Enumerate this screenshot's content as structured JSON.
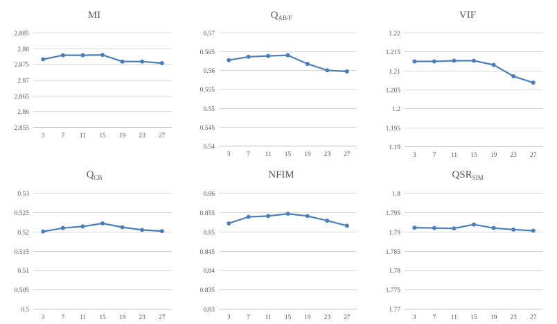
{
  "colors": {
    "series": "#4a7ebb",
    "grid": "#d9d9d9",
    "text": "#595959"
  },
  "chart_data": [
    {
      "type": "line",
      "title": "MI",
      "title_sub": "",
      "x": [
        3,
        7,
        11,
        15,
        19,
        23,
        27
      ],
      "xticks": [
        "3",
        "7",
        "11",
        "15",
        "19",
        "23",
        "27"
      ],
      "values": [
        2.8765,
        2.8778,
        2.8778,
        2.8779,
        2.8758,
        2.8758,
        2.8753
      ],
      "ylim": [
        2.855,
        2.885
      ],
      "yticks": [
        2.855,
        2.86,
        2.865,
        2.87,
        2.875,
        2.88,
        2.885
      ],
      "ytick_labels": [
        "2.855",
        "2.86",
        "2.865",
        "2.87",
        "2.875",
        "2.88",
        "2.885"
      ]
    },
    {
      "type": "line",
      "title": "Q",
      "title_sub": "AB/F",
      "x": [
        3,
        7,
        11,
        15,
        19,
        23,
        27
      ],
      "xticks": [
        "3",
        "7",
        "11",
        "15",
        "19",
        "23",
        "27"
      ],
      "values": [
        0.5627,
        0.5636,
        0.5638,
        0.564,
        0.5617,
        0.56,
        0.5597
      ],
      "ylim": [
        0.54,
        0.57
      ],
      "yticks": [
        0.54,
        0.545,
        0.55,
        0.555,
        0.56,
        0.565,
        0.57
      ],
      "ytick_labels": [
        "0.54",
        "0.545",
        "0.55",
        "0.555",
        "0.56",
        "0.565",
        "0.57"
      ]
    },
    {
      "type": "line",
      "title": "VIF",
      "title_sub": "",
      "x": [
        3,
        7,
        11,
        15,
        19,
        23,
        27
      ],
      "xticks": [
        "3",
        "7",
        "11",
        "15",
        "19",
        "23",
        "27"
      ],
      "values": [
        1.2124,
        1.2124,
        1.2126,
        1.2126,
        1.2115,
        1.2085,
        1.2068
      ],
      "ylim": [
        1.19,
        1.22
      ],
      "yticks": [
        1.19,
        1.195,
        1.2,
        1.205,
        1.21,
        1.215,
        1.22
      ],
      "ytick_labels": [
        "1.19",
        "1.195",
        "1.2",
        "1.205",
        "1.21",
        "1.215",
        "1.22"
      ]
    },
    {
      "type": "line",
      "title": "Q",
      "title_sub": "CB",
      "x": [
        3,
        7,
        11,
        15,
        19,
        23,
        27
      ],
      "xticks": [
        "3",
        "7",
        "11",
        "15",
        "19",
        "23",
        "27"
      ],
      "values": [
        0.52,
        0.5209,
        0.5213,
        0.5221,
        0.5211,
        0.5204,
        0.5201
      ],
      "ylim": [
        0.5,
        0.53
      ],
      "yticks": [
        0.5,
        0.505,
        0.51,
        0.515,
        0.52,
        0.525,
        0.53
      ],
      "ytick_labels": [
        "0.5",
        "0.505",
        "0.51",
        "0.515",
        "0.52",
        "0.525",
        "0.53"
      ]
    },
    {
      "type": "line",
      "title": "NFIM",
      "title_sub": "",
      "x": [
        3,
        7,
        11,
        15,
        19,
        23,
        27
      ],
      "xticks": [
        "3",
        "7",
        "11",
        "15",
        "19",
        "23",
        "27"
      ],
      "values": [
        0.8521,
        0.8538,
        0.854,
        0.8546,
        0.854,
        0.8528,
        0.8515
      ],
      "ylim": [
        0.83,
        0.86
      ],
      "yticks": [
        0.83,
        0.835,
        0.84,
        0.845,
        0.85,
        0.855,
        0.86
      ],
      "ytick_labels": [
        "0.83",
        "0.835",
        "0.84",
        "0.845",
        "0.85",
        "0.855",
        "0.86"
      ]
    },
    {
      "type": "line",
      "title": "QSR",
      "title_sub": "SIM",
      "x": [
        3,
        7,
        11,
        15,
        19,
        23,
        27
      ],
      "xticks": [
        "3",
        "7",
        "11",
        "15",
        "19",
        "23",
        "27"
      ],
      "values": [
        1.791,
        1.7909,
        1.7908,
        1.7918,
        1.7909,
        1.7905,
        1.7902
      ],
      "ylim": [
        1.77,
        1.8
      ],
      "yticks": [
        1.77,
        1.775,
        1.78,
        1.785,
        1.79,
        1.795,
        1.8
      ],
      "ytick_labels": [
        "1.77",
        "1.775",
        "1.78",
        "1.785",
        "1.79",
        "1.795",
        "1.8"
      ]
    }
  ]
}
